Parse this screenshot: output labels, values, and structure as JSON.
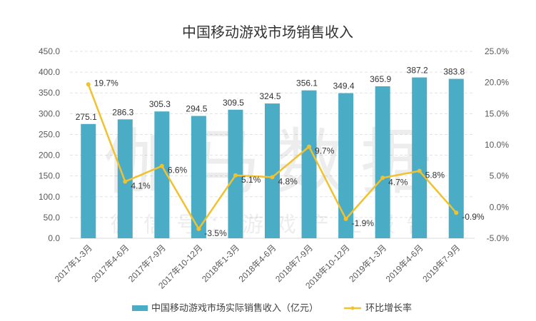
{
  "chart_data": {
    "type": "bar+line",
    "title": "中国移动游戏市场销售收入",
    "categories": [
      "2017年1-3月",
      "2017年4-6月",
      "2017年7-9月",
      "2017年10-12月",
      "2018年1-3月",
      "2018年4-6月",
      "2018年7-9月",
      "2018年10-12月",
      "2019年1-3月",
      "2019年4-6月",
      "2019年7-9月"
    ],
    "series": [
      {
        "name": "中国移动游戏市场实际销售收入（亿元）",
        "type": "bar",
        "axis": "left",
        "color": "#4bacc6",
        "values": [
          275.1,
          286.3,
          305.3,
          294.5,
          309.5,
          324.5,
          356.1,
          349.4,
          365.9,
          387.2,
          383.8
        ],
        "labels": [
          "275.1",
          "286.3",
          "305.3",
          "294.5",
          "309.5",
          "324.5",
          "356.1",
          "349.4",
          "365.9",
          "387.2",
          "383.8"
        ]
      },
      {
        "name": "环比增长率",
        "type": "line",
        "axis": "right",
        "color": "#f2c12e",
        "values": [
          19.7,
          4.1,
          6.6,
          -3.5,
          5.1,
          4.8,
          9.7,
          -1.9,
          4.7,
          5.8,
          -0.9
        ],
        "labels": [
          "19.7%",
          "4.1%",
          "6.6%",
          "-3.5%",
          "5.1%",
          "4.8%",
          "9.7%",
          "-1.9%",
          "4.7%",
          "5.8%",
          "-0.9%"
        ]
      }
    ],
    "left_axis": {
      "ylim": [
        0,
        450
      ],
      "ticks": [
        "0.0",
        "50.0",
        "100.0",
        "150.0",
        "200.0",
        "250.0",
        "300.0",
        "350.0",
        "400.0",
        "450.0"
      ]
    },
    "right_axis": {
      "ylim": [
        -5,
        25
      ],
      "ticks": [
        "-5.0%",
        "0.0%",
        "5.0%",
        "10.0%",
        "15.0%",
        "20.0%",
        "25.0%"
      ]
    },
    "grid": true,
    "legend_position": "bottom",
    "watermark": [
      "伽马数据",
      "微信号：游戏产业报告"
    ]
  }
}
